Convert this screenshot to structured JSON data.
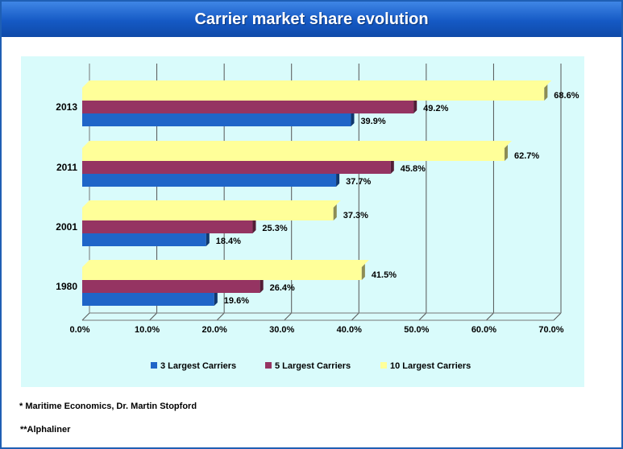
{
  "title": "Carrier market share evolution",
  "notes": [
    "* Maritime Economics, Dr. Martin Stopford",
    "**Alphaliner"
  ],
  "colors": {
    "s3": "#1f65c8",
    "s5": "#953462",
    "s10": "#ffff99",
    "plot_bg": "#d9fbfb",
    "title_bg": "#1559c4"
  },
  "chart_data": {
    "type": "bar",
    "orientation": "horizontal",
    "title": "Carrier market share evolution",
    "categories": [
      "1980",
      "2001",
      "2011",
      "2013"
    ],
    "series": [
      {
        "name": "3 Largest Carriers",
        "values": [
          19.6,
          18.4,
          37.7,
          39.9
        ],
        "labels": [
          "19.6%",
          "18.4%",
          "37.7%",
          "39.9%"
        ]
      },
      {
        "name": "5 Largest Carriers",
        "values": [
          26.4,
          25.3,
          45.8,
          49.2
        ],
        "labels": [
          "26.4%",
          "25.3%",
          "45.8%",
          "49.2%"
        ]
      },
      {
        "name": "10 Largest Carriers",
        "values": [
          41.5,
          37.3,
          62.7,
          68.6
        ],
        "labels": [
          "41.5%",
          "37.3%",
          "62.7%",
          "68.6%"
        ]
      }
    ],
    "xlim": [
      0,
      70
    ],
    "xticks": [
      "0.0%",
      "10.0%",
      "20.0%",
      "30.0%",
      "40.0%",
      "50.0%",
      "60.0%",
      "70.0%"
    ],
    "grid": true,
    "legend": "bottom",
    "three_d": true
  }
}
